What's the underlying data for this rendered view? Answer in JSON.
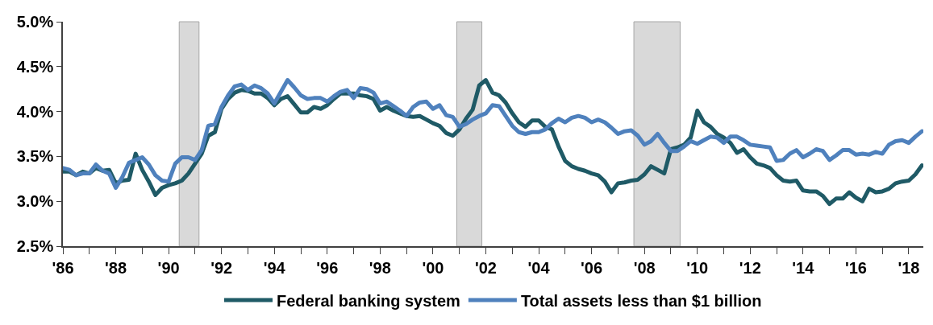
{
  "chart_data": {
    "type": "line",
    "x": [
      1986,
      1986.25,
      1986.5,
      1986.75,
      1987,
      1987.25,
      1987.5,
      1987.75,
      1988,
      1988.25,
      1988.5,
      1988.75,
      1989,
      1989.25,
      1989.5,
      1989.75,
      1990,
      1990.25,
      1990.5,
      1990.75,
      1991,
      1991.25,
      1991.5,
      1991.75,
      1992,
      1992.25,
      1992.5,
      1992.75,
      1993,
      1993.25,
      1993.5,
      1993.75,
      1994,
      1994.25,
      1994.5,
      1994.75,
      1995,
      1995.25,
      1995.5,
      1995.75,
      1996,
      1996.25,
      1996.5,
      1996.75,
      1997,
      1997.25,
      1997.5,
      1997.75,
      1998,
      1998.25,
      1998.5,
      1998.75,
      1999,
      1999.25,
      1999.5,
      1999.75,
      2000,
      2000.25,
      2000.5,
      2000.75,
      2001,
      2001.25,
      2001.5,
      2001.75,
      2002,
      2002.25,
      2002.5,
      2002.75,
      2003,
      2003.25,
      2003.5,
      2003.75,
      2004,
      2004.25,
      2004.5,
      2004.75,
      2005,
      2005.25,
      2005.5,
      2005.75,
      2006,
      2006.25,
      2006.5,
      2006.75,
      2007,
      2007.25,
      2007.5,
      2007.75,
      2008,
      2008.25,
      2008.5,
      2008.75,
      2009,
      2009.25,
      2009.5,
      2009.75,
      2010,
      2010.25,
      2010.5,
      2010.75,
      2011,
      2011.25,
      2011.5,
      2011.75,
      2012,
      2012.25,
      2012.5,
      2012.75,
      2013,
      2013.25,
      2013.5,
      2013.75,
      2014,
      2014.25,
      2014.5,
      2014.75,
      2015,
      2015.25,
      2015.5,
      2015.75,
      2016,
      2016.25,
      2016.5,
      2016.75,
      2017,
      2017.25,
      2017.5,
      2017.75,
      2018,
      2018.25,
      2018.5
    ],
    "series": [
      {
        "name": "Federal banking system",
        "color": "#1f5a66",
        "values": [
          3.33,
          3.33,
          3.29,
          3.33,
          3.31,
          3.37,
          3.34,
          3.35,
          3.2,
          3.23,
          3.24,
          3.53,
          3.35,
          3.22,
          3.07,
          3.15,
          3.18,
          3.2,
          3.23,
          3.31,
          3.42,
          3.53,
          3.73,
          3.77,
          4.03,
          4.14,
          4.21,
          4.24,
          4.23,
          4.2,
          4.2,
          4.15,
          4.07,
          4.14,
          4.17,
          4.08,
          3.99,
          3.99,
          4.05,
          4.03,
          4.07,
          4.14,
          4.2,
          4.2,
          4.2,
          4.18,
          4.17,
          4.14,
          4.01,
          4.05,
          4.01,
          3.98,
          3.95,
          3.94,
          3.95,
          3.91,
          3.87,
          3.84,
          3.76,
          3.73,
          3.8,
          3.92,
          4.02,
          4.29,
          4.35,
          4.21,
          4.18,
          4.1,
          3.98,
          3.88,
          3.83,
          3.9,
          3.9,
          3.83,
          3.8,
          3.61,
          3.45,
          3.39,
          3.36,
          3.34,
          3.31,
          3.29,
          3.22,
          3.1,
          3.2,
          3.21,
          3.23,
          3.24,
          3.3,
          3.39,
          3.35,
          3.31,
          3.58,
          3.6,
          3.63,
          3.71,
          4.01,
          3.88,
          3.83,
          3.75,
          3.71,
          3.65,
          3.54,
          3.58,
          3.49,
          3.42,
          3.4,
          3.37,
          3.29,
          3.23,
          3.22,
          3.23,
          3.12,
          3.11,
          3.11,
          3.06,
          2.97,
          3.03,
          3.03,
          3.1,
          3.04,
          3.0,
          3.14,
          3.1,
          3.11,
          3.14,
          3.2,
          3.22,
          3.23,
          3.3,
          3.4
        ]
      },
      {
        "name": "Total assets less than $1 billion",
        "color": "#4f81bd",
        "values": [
          3.37,
          3.35,
          3.29,
          3.31,
          3.31,
          3.41,
          3.34,
          3.31,
          3.15,
          3.27,
          3.43,
          3.46,
          3.49,
          3.41,
          3.29,
          3.23,
          3.22,
          3.42,
          3.49,
          3.49,
          3.46,
          3.57,
          3.84,
          3.86,
          4.05,
          4.18,
          4.28,
          4.3,
          4.24,
          4.29,
          4.26,
          4.2,
          4.09,
          4.22,
          4.35,
          4.27,
          4.18,
          4.14,
          4.15,
          4.15,
          4.11,
          4.17,
          4.22,
          4.24,
          4.15,
          4.26,
          4.25,
          4.21,
          4.09,
          4.11,
          4.06,
          4.01,
          3.95,
          4.05,
          4.1,
          4.11,
          4.03,
          4.07,
          3.96,
          3.94,
          3.83,
          3.86,
          3.91,
          3.95,
          3.98,
          4.07,
          4.06,
          3.95,
          3.84,
          3.77,
          3.75,
          3.77,
          3.77,
          3.8,
          3.87,
          3.92,
          3.88,
          3.93,
          3.95,
          3.93,
          3.88,
          3.91,
          3.88,
          3.82,
          3.75,
          3.78,
          3.79,
          3.73,
          3.63,
          3.67,
          3.75,
          3.65,
          3.56,
          3.56,
          3.61,
          3.67,
          3.64,
          3.68,
          3.72,
          3.71,
          3.65,
          3.72,
          3.72,
          3.68,
          3.63,
          3.62,
          3.61,
          3.6,
          3.45,
          3.46,
          3.53,
          3.57,
          3.49,
          3.53,
          3.58,
          3.56,
          3.46,
          3.51,
          3.57,
          3.57,
          3.52,
          3.53,
          3.52,
          3.55,
          3.53,
          3.63,
          3.67,
          3.68,
          3.65,
          3.72,
          3.78
        ]
      }
    ],
    "xlim": [
      1986,
      2018.55
    ],
    "xticks": [
      {
        "value": 1986,
        "label": "'86"
      },
      {
        "value": 1987,
        "label": null
      },
      {
        "value": 1988,
        "label": "'88"
      },
      {
        "value": 1989,
        "label": null
      },
      {
        "value": 1990,
        "label": "'90"
      },
      {
        "value": 1991,
        "label": null
      },
      {
        "value": 1992,
        "label": "'92"
      },
      {
        "value": 1993,
        "label": null
      },
      {
        "value": 1994,
        "label": "'94"
      },
      {
        "value": 1995,
        "label": null
      },
      {
        "value": 1996,
        "label": "'96"
      },
      {
        "value": 1997,
        "label": null
      },
      {
        "value": 1998,
        "label": "'98"
      },
      {
        "value": 1999,
        "label": null
      },
      {
        "value": 2000,
        "label": "'00"
      },
      {
        "value": 2001,
        "label": null
      },
      {
        "value": 2002,
        "label": "'02"
      },
      {
        "value": 2003,
        "label": null
      },
      {
        "value": 2004,
        "label": "'04"
      },
      {
        "value": 2005,
        "label": null
      },
      {
        "value": 2006,
        "label": "'06"
      },
      {
        "value": 2007,
        "label": null
      },
      {
        "value": 2008,
        "label": "'08"
      },
      {
        "value": 2009,
        "label": null
      },
      {
        "value": 2010,
        "label": "'10"
      },
      {
        "value": 2011,
        "label": null
      },
      {
        "value": 2012,
        "label": "'12"
      },
      {
        "value": 2013,
        "label": null
      },
      {
        "value": 2014,
        "label": "'14"
      },
      {
        "value": 2015,
        "label": null
      },
      {
        "value": 2016,
        "label": "'16"
      },
      {
        "value": 2017,
        "label": null
      },
      {
        "value": 2018,
        "label": "'18"
      }
    ],
    "ylim": [
      2.5,
      5.0
    ],
    "yticks": [
      {
        "value": 2.5,
        "label": "2.5%"
      },
      {
        "value": 3.0,
        "label": "3.0%"
      },
      {
        "value": 3.5,
        "label": "3.5%"
      },
      {
        "value": 4.0,
        "label": "4.0%"
      },
      {
        "value": 4.5,
        "label": "4.5%"
      },
      {
        "value": 5.0,
        "label": "5.0%"
      }
    ],
    "bands": [
      {
        "axis": "x",
        "from": 1990.4,
        "to": 1991.15,
        "color": "#d9d9d9"
      },
      {
        "axis": "x",
        "from": 2000.9,
        "to": 2001.85,
        "color": "#d9d9d9"
      },
      {
        "axis": "x",
        "from": 2007.6,
        "to": 2009.35,
        "color": "#d9d9d9"
      }
    ],
    "grid": false,
    "legend": "bottom",
    "marker": "none",
    "line_style": "solid"
  }
}
